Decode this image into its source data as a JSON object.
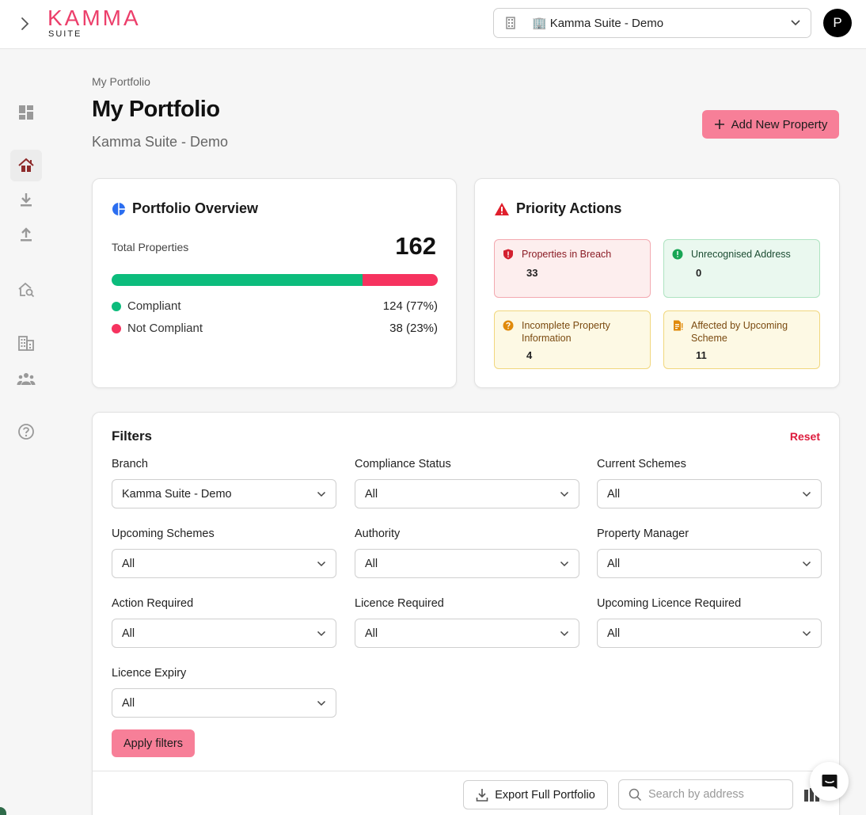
{
  "header": {
    "logo_main": "KAMMA",
    "logo_sub": "SUITE",
    "org_emoji": "🏢",
    "org_name": "Kamma Suite - Demo",
    "avatar_initial": "P"
  },
  "sidebar": {
    "items": [
      {
        "icon": "dashboard-icon"
      },
      {
        "icon": "home-portfolio-icon",
        "active": true
      },
      {
        "icon": "download-icon"
      },
      {
        "icon": "upload-icon"
      },
      {
        "icon": "property-search-icon"
      },
      {
        "icon": "building-icon"
      },
      {
        "icon": "people-icon"
      },
      {
        "icon": "help-icon"
      }
    ]
  },
  "page": {
    "breadcrumb": "My Portfolio",
    "title": "My Portfolio",
    "subtitle": "Kamma Suite - Demo",
    "add_button": "Add New Property"
  },
  "overview": {
    "title": "Portfolio Overview",
    "total_label": "Total Properties",
    "total_value": "162",
    "compliant_fraction": 0.77,
    "compliant_label": "Compliant",
    "compliant_value": "124 (77%)",
    "not_compliant_label": "Not Compliant",
    "not_compliant_value": "38 (23%)",
    "colors": {
      "compliant": "#0cbc7c",
      "not_compliant": "#f6335f"
    }
  },
  "priority": {
    "title": "Priority Actions",
    "items": [
      {
        "label": "Properties in Breach",
        "count": "33",
        "tone": "red",
        "icon": "shield-alert-icon"
      },
      {
        "label": "Unrecognised Address",
        "count": "0",
        "tone": "green",
        "icon": "alert-circle-icon"
      },
      {
        "label": "Incomplete Property Information",
        "count": "4",
        "tone": "yellow",
        "icon": "question-circle-icon"
      },
      {
        "label": "Affected by Upcoming Scheme",
        "count": "11",
        "tone": "yellow",
        "icon": "document-alert-icon"
      }
    ]
  },
  "filters": {
    "title": "Filters",
    "reset": "Reset",
    "fields": [
      {
        "label": "Branch",
        "value": "Kamma Suite - Demo"
      },
      {
        "label": "Compliance Status",
        "value": "All"
      },
      {
        "label": "Current Schemes",
        "value": "All"
      },
      {
        "label": "Upcoming Schemes",
        "value": "All"
      },
      {
        "label": "Authority",
        "value": "All"
      },
      {
        "label": "Property Manager",
        "value": "All"
      },
      {
        "label": "Action Required",
        "value": "All"
      },
      {
        "label": "Licence Required",
        "value": "All"
      },
      {
        "label": "Upcoming Licence Required",
        "value": "All"
      },
      {
        "label": "Licence Expiry",
        "value": "All"
      }
    ],
    "apply": "Apply filters",
    "export": "Export Full Portfolio",
    "search_placeholder": "Search by address"
  }
}
